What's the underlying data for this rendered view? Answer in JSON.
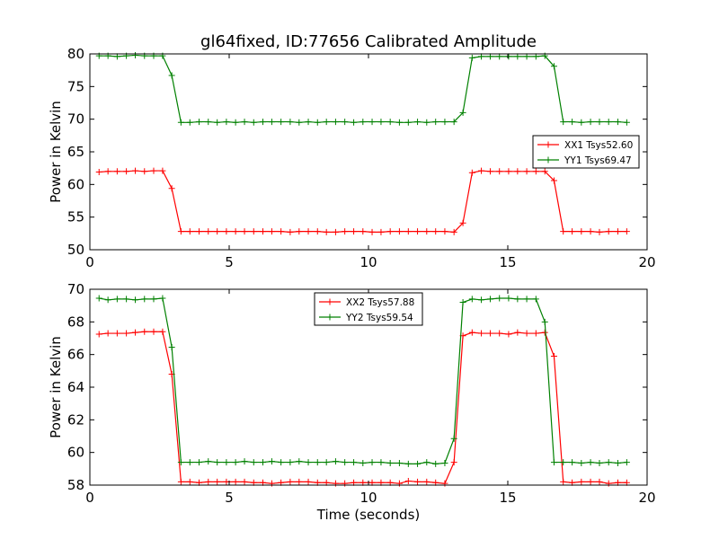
{
  "figure_title": "gl64fixed, ID:77656 Calibrated Amplitude",
  "chart_data": [
    {
      "type": "line",
      "title": "gl64fixed, ID:77656 Calibrated Amplitude",
      "xlabel": "",
      "ylabel": "Power in Kelvin",
      "xlim": [
        0,
        20
      ],
      "ylim": [
        50,
        80
      ],
      "xticks": [
        0,
        5,
        10,
        15,
        20
      ],
      "yticks": [
        50,
        55,
        60,
        65,
        70,
        75,
        80
      ],
      "grid": false,
      "legend_position": "center-right",
      "x": [
        0.33,
        0.65,
        0.98,
        1.31,
        1.63,
        1.96,
        2.29,
        2.61,
        2.94,
        3.27,
        3.59,
        3.92,
        4.25,
        4.57,
        4.9,
        5.23,
        5.55,
        5.88,
        6.21,
        6.53,
        6.86,
        7.19,
        7.51,
        7.84,
        8.17,
        8.49,
        8.82,
        9.15,
        9.47,
        9.8,
        10.13,
        10.45,
        10.78,
        11.11,
        11.43,
        11.76,
        12.09,
        12.41,
        12.74,
        13.07,
        13.39,
        13.72,
        14.05,
        14.37,
        14.7,
        15.03,
        15.35,
        15.68,
        16.01,
        16.33,
        16.66,
        16.99,
        17.31,
        17.64,
        17.97,
        18.29,
        18.62,
        18.95,
        19.27
      ],
      "series": [
        {
          "name": "XX1 Tsys52.60",
          "color": "#ff0000",
          "values": [
            61.9,
            62.0,
            62.0,
            62.0,
            62.1,
            62.0,
            62.1,
            62.1,
            59.4,
            52.8,
            52.8,
            52.8,
            52.8,
            52.8,
            52.8,
            52.8,
            52.8,
            52.8,
            52.8,
            52.8,
            52.8,
            52.7,
            52.8,
            52.8,
            52.8,
            52.7,
            52.7,
            52.8,
            52.8,
            52.8,
            52.7,
            52.7,
            52.8,
            52.8,
            52.8,
            52.8,
            52.8,
            52.8,
            52.8,
            52.7,
            54.1,
            61.8,
            62.1,
            62.0,
            62.0,
            62.0,
            62.0,
            62.0,
            62.0,
            62.0,
            60.6,
            52.8,
            52.8,
            52.8,
            52.8,
            52.7,
            52.8,
            52.8,
            52.8
          ]
        },
        {
          "name": "YY1 Tsys69.47",
          "color": "#008000",
          "values": [
            79.7,
            79.7,
            79.6,
            79.7,
            79.8,
            79.7,
            79.7,
            79.7,
            76.7,
            69.5,
            69.5,
            69.6,
            69.6,
            69.5,
            69.6,
            69.5,
            69.6,
            69.5,
            69.6,
            69.6,
            69.6,
            69.6,
            69.5,
            69.6,
            69.5,
            69.6,
            69.6,
            69.6,
            69.5,
            69.6,
            69.6,
            69.6,
            69.6,
            69.5,
            69.5,
            69.6,
            69.5,
            69.6,
            69.6,
            69.6,
            71.0,
            79.4,
            79.6,
            79.6,
            79.6,
            79.6,
            79.6,
            79.6,
            79.6,
            79.7,
            78.1,
            69.6,
            69.6,
            69.5,
            69.6,
            69.6,
            69.6,
            69.6,
            69.5
          ]
        }
      ]
    },
    {
      "type": "line",
      "title": "",
      "xlabel": "Time (seconds)",
      "ylabel": "Power in Kelvin",
      "xlim": [
        0,
        20
      ],
      "ylim": [
        58,
        70
      ],
      "xticks": [
        0,
        5,
        10,
        15,
        20
      ],
      "yticks": [
        58,
        60,
        62,
        64,
        66,
        68,
        70
      ],
      "grid": false,
      "legend_position": "top-center",
      "x": [
        0.33,
        0.65,
        0.98,
        1.31,
        1.63,
        1.96,
        2.29,
        2.61,
        2.94,
        3.27,
        3.59,
        3.92,
        4.25,
        4.57,
        4.9,
        5.23,
        5.55,
        5.88,
        6.21,
        6.53,
        6.86,
        7.19,
        7.51,
        7.84,
        8.17,
        8.49,
        8.82,
        9.15,
        9.47,
        9.8,
        10.13,
        10.45,
        10.78,
        11.11,
        11.43,
        11.76,
        12.09,
        12.41,
        12.74,
        13.07,
        13.39,
        13.72,
        14.05,
        14.37,
        14.7,
        15.03,
        15.35,
        15.68,
        16.01,
        16.33,
        16.66,
        16.99,
        17.31,
        17.64,
        17.97,
        18.29,
        18.62,
        18.95,
        19.27
      ],
      "series": [
        {
          "name": "XX2 Tsys57.88",
          "color": "#ff0000",
          "values": [
            67.25,
            67.3,
            67.3,
            67.3,
            67.35,
            67.4,
            67.4,
            67.4,
            64.8,
            58.2,
            58.2,
            58.15,
            58.2,
            58.2,
            58.2,
            58.2,
            58.2,
            58.15,
            58.15,
            58.1,
            58.15,
            58.2,
            58.2,
            58.2,
            58.15,
            58.15,
            58.1,
            58.1,
            58.15,
            58.15,
            58.15,
            58.15,
            58.15,
            58.1,
            58.25,
            58.2,
            58.2,
            58.15,
            58.1,
            59.4,
            67.15,
            67.35,
            67.3,
            67.3,
            67.3,
            67.25,
            67.35,
            67.3,
            67.3,
            67.35,
            65.9,
            58.2,
            58.15,
            58.2,
            58.2,
            58.2,
            58.1,
            58.15,
            58.15
          ]
        },
        {
          "name": "YY2 Tsys59.54",
          "color": "#008000",
          "values": [
            69.45,
            69.35,
            69.4,
            69.4,
            69.35,
            69.4,
            69.4,
            69.45,
            66.45,
            59.4,
            59.4,
            59.4,
            59.45,
            59.4,
            59.4,
            59.4,
            59.45,
            59.4,
            59.4,
            59.45,
            59.4,
            59.4,
            59.45,
            59.4,
            59.4,
            59.4,
            59.45,
            59.4,
            59.4,
            59.35,
            59.4,
            59.4,
            59.35,
            59.35,
            59.3,
            59.3,
            59.4,
            59.3,
            59.35,
            60.85,
            69.2,
            69.4,
            69.35,
            69.4,
            69.45,
            69.45,
            69.4,
            69.4,
            69.4,
            68.0,
            59.4,
            59.4,
            59.4,
            59.35,
            59.4,
            59.35,
            59.4,
            59.35,
            59.4
          ]
        }
      ]
    }
  ]
}
